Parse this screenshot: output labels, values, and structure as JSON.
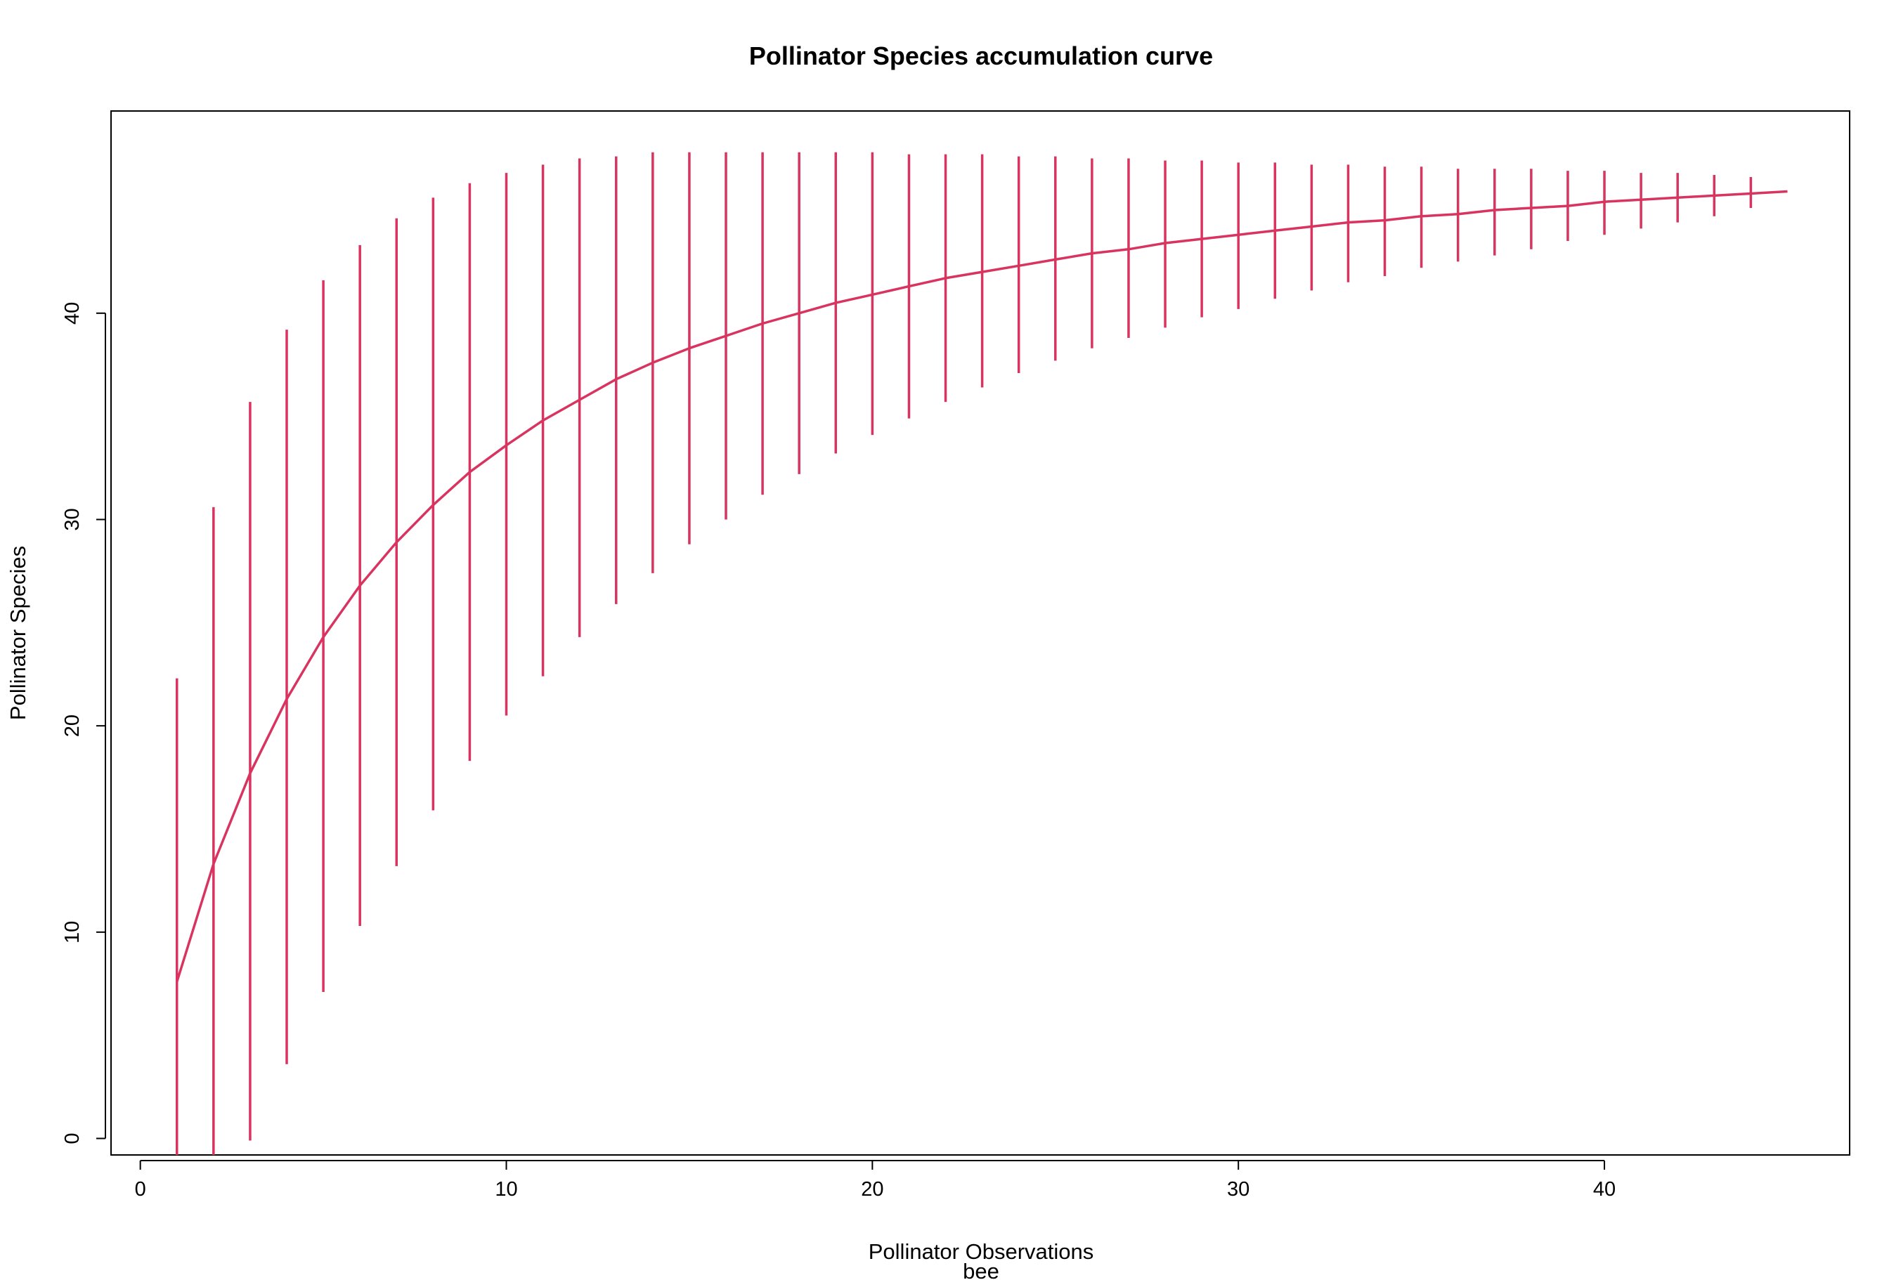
{
  "chart_data": {
    "type": "line",
    "title": "Pollinator Species accumulation curve",
    "xlabel": "Pollinator Observations",
    "sub": "bee",
    "ylabel": "Pollinator Species",
    "xlim": [
      -0.8,
      46.7
    ],
    "ylim": [
      -0.8,
      49.8
    ],
    "xticks": [
      0,
      10,
      20,
      30,
      40
    ],
    "yticks": [
      0,
      10,
      20,
      30,
      40
    ],
    "grid": false,
    "legend": "none",
    "color": "#d8345f",
    "series": [
      {
        "x": [
          1,
          2,
          3,
          4,
          5,
          6,
          7,
          8,
          9,
          10,
          11,
          12,
          13,
          14,
          15,
          16,
          17,
          18,
          19,
          20,
          21,
          22,
          23,
          24,
          25,
          26,
          27,
          28,
          29,
          30,
          31,
          32,
          33,
          34,
          35,
          36,
          37,
          38,
          39,
          40,
          41,
          42,
          43,
          44,
          45
        ],
        "y": [
          7.6,
          13.3,
          17.7,
          21.3,
          24.3,
          26.8,
          28.9,
          30.7,
          32.3,
          33.6,
          34.8,
          35.8,
          36.8,
          37.6,
          38.3,
          38.9,
          39.5,
          40.0,
          40.5,
          40.9,
          41.3,
          41.7,
          42.0,
          42.3,
          42.6,
          42.9,
          43.1,
          43.4,
          43.6,
          43.8,
          44.0,
          44.2,
          44.4,
          44.5,
          44.7,
          44.8,
          45.0,
          45.1,
          45.2,
          45.4,
          45.5,
          45.6,
          45.7,
          45.8,
          45.9
        ],
        "lower": [
          -0.8,
          -0.8,
          -0.1,
          3.6,
          7.1,
          10.3,
          13.2,
          15.9,
          18.3,
          20.5,
          22.4,
          24.3,
          25.9,
          27.4,
          28.8,
          30.0,
          31.2,
          32.2,
          33.2,
          34.1,
          34.9,
          35.7,
          36.4,
          37.1,
          37.7,
          38.3,
          38.8,
          39.3,
          39.8,
          40.2,
          40.7,
          41.1,
          41.5,
          41.8,
          42.2,
          42.5,
          42.8,
          43.1,
          43.5,
          43.8,
          44.1,
          44.4,
          44.7,
          45.1,
          null
        ],
        "upper": [
          22.3,
          30.6,
          35.7,
          39.2,
          41.6,
          43.3,
          44.6,
          45.6,
          46.3,
          46.8,
          47.2,
          47.5,
          47.6,
          47.8,
          47.8,
          47.8,
          47.8,
          47.8,
          47.8,
          47.8,
          47.7,
          47.7,
          47.7,
          47.6,
          47.6,
          47.5,
          47.5,
          47.4,
          47.4,
          47.3,
          47.3,
          47.2,
          47.2,
          47.1,
          47.1,
          47.0,
          47.0,
          47.0,
          46.9,
          46.9,
          46.8,
          46.8,
          46.7,
          46.6,
          null
        ]
      }
    ]
  }
}
